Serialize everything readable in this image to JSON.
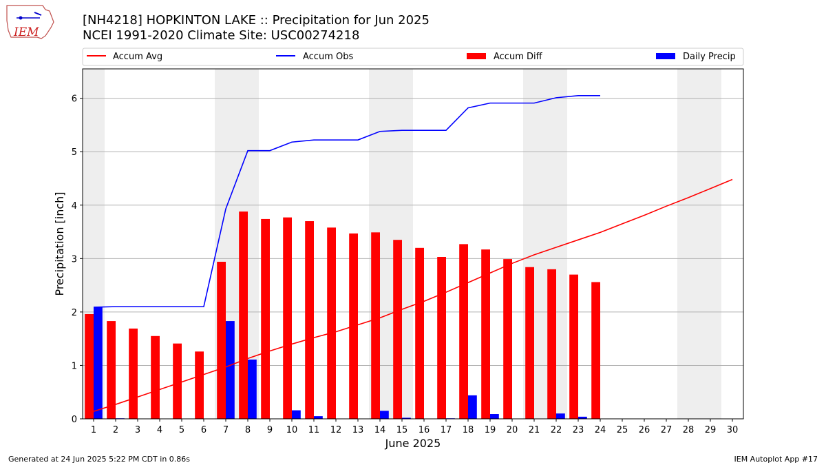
{
  "header": {
    "title_line1": "[NH4218] HOPKINTON LAKE :: Precipitation for Jun 2025",
    "title_line2": "NCEI 1991-2020 Climate Site: USC00274218"
  },
  "logo": {
    "text": "IEM"
  },
  "footer": {
    "left": "Generated at 24 Jun 2025 5:22 PM CDT in 0.86s",
    "right": "IEM Autoplot App #17"
  },
  "colors": {
    "avg": "#ff0000",
    "obs": "#0000ff",
    "diff": "#ff0000",
    "daily": "#0000ff",
    "weekend_band": "#eeeeee",
    "grid": "#b0b0b0"
  },
  "chart_data": {
    "type": "bar",
    "xlabel": "June 2025",
    "ylabel": "Precipitation [inch]",
    "xlim": [
      0.5,
      30.5
    ],
    "ylim": [
      0,
      6.55
    ],
    "y_ticks": [
      0,
      1,
      2,
      3,
      4,
      5,
      6
    ],
    "x_ticks": [
      1,
      2,
      3,
      4,
      5,
      6,
      7,
      8,
      9,
      10,
      11,
      12,
      13,
      14,
      15,
      16,
      17,
      18,
      19,
      20,
      21,
      22,
      23,
      24,
      25,
      26,
      27,
      28,
      29,
      30
    ],
    "grid": "y",
    "legend_position": "top",
    "weekend_bands": [
      [
        0.5,
        1.5
      ],
      [
        6.5,
        8.5
      ],
      [
        13.5,
        15.5
      ],
      [
        20.5,
        22.5
      ],
      [
        27.5,
        29.5
      ]
    ],
    "series": [
      {
        "name": "Accum Avg",
        "kind": "line",
        "x": [
          1,
          2,
          3,
          4,
          5,
          6,
          7,
          8,
          9,
          10,
          11,
          12,
          13,
          14,
          15,
          16,
          17,
          18,
          19,
          20,
          21,
          22,
          23,
          24,
          25,
          26,
          27,
          28,
          29,
          30
        ],
        "values": [
          0.14,
          0.27,
          0.41,
          0.55,
          0.69,
          0.83,
          0.97,
          1.13,
          1.27,
          1.4,
          1.52,
          1.63,
          1.76,
          1.89,
          2.05,
          2.2,
          2.37,
          2.55,
          2.73,
          2.91,
          3.07,
          3.21,
          3.35,
          3.49,
          3.65,
          3.81,
          3.98,
          4.14,
          4.31,
          4.48
        ]
      },
      {
        "name": "Accum Obs",
        "kind": "line",
        "x": [
          1,
          2,
          3,
          4,
          5,
          6,
          7,
          8,
          9,
          10,
          11,
          12,
          13,
          14,
          15,
          16,
          17,
          18,
          19,
          20,
          21,
          22,
          23,
          24
        ],
        "values": [
          2.09,
          2.1,
          2.1,
          2.1,
          2.1,
          2.1,
          3.93,
          5.02,
          5.02,
          5.18,
          5.22,
          5.22,
          5.22,
          5.38,
          5.4,
          5.4,
          5.4,
          5.82,
          5.91,
          5.91,
          5.91,
          6.01,
          6.05,
          6.05
        ]
      },
      {
        "name": "Accum Diff",
        "kind": "bar",
        "x": [
          1,
          2,
          3,
          4,
          5,
          6,
          7,
          8,
          9,
          10,
          11,
          12,
          13,
          14,
          15,
          16,
          17,
          18,
          19,
          20,
          21,
          22,
          23,
          24
        ],
        "values": [
          1.96,
          1.83,
          1.69,
          1.55,
          1.41,
          1.26,
          2.94,
          3.88,
          3.74,
          3.77,
          3.7,
          3.58,
          3.47,
          3.49,
          3.35,
          3.2,
          3.03,
          3.27,
          3.17,
          2.99,
          2.84,
          2.8,
          2.7,
          2.56
        ]
      },
      {
        "name": "Daily Precip",
        "kind": "bar",
        "x": [
          1,
          2,
          3,
          4,
          5,
          6,
          7,
          8,
          9,
          10,
          11,
          12,
          13,
          14,
          15,
          16,
          17,
          18,
          19,
          20,
          21,
          22,
          23,
          24
        ],
        "values": [
          2.09,
          0.01,
          0,
          0,
          0,
          0,
          1.83,
          1.11,
          0,
          0.16,
          0.05,
          0,
          0,
          0.15,
          0.02,
          0,
          0.01,
          0.44,
          0.09,
          0,
          0,
          0.1,
          0.04,
          0
        ]
      }
    ]
  }
}
